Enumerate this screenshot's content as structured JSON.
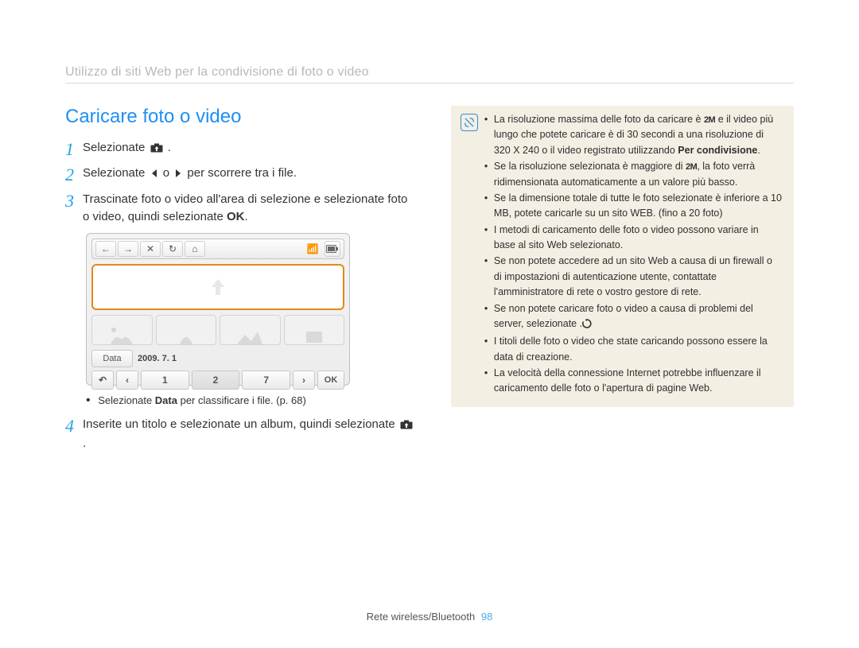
{
  "breadcrumb": "Utilizzo di siti Web per la condivisione di foto o video",
  "title": "Caricare foto o video",
  "steps": {
    "s1": {
      "num": "1",
      "text_a": "Selezionate ",
      "text_b": "."
    },
    "s2": {
      "num": "2",
      "text_a": "Selezionate ",
      "text_b": " o ",
      "text_c": " per scorrere tra i file."
    },
    "s3": {
      "num": "3",
      "text_a": "Trascinate foto o video all'area di selezione e selezionate foto o video, quindi selezionate ",
      "ok": "OK",
      "text_b": "."
    },
    "s4": {
      "num": "4",
      "text_a": "Inserite un titolo e selezionate un album, quindi selezionate ",
      "text_b": "."
    }
  },
  "note": {
    "pre": "Selezionate ",
    "bold": "Data",
    "post": " per classificare i file. (p. 68)"
  },
  "device": {
    "data_button": "Data",
    "date_text": "2009. 7. 1",
    "bottom_numbers": [
      "1",
      "2",
      "7"
    ],
    "ok_label": "OK",
    "border_color": "#e08a1a"
  },
  "info": {
    "items": [
      {
        "a": "La risoluzione massima delle foto da caricare è ",
        "res": "2M",
        "b": " e il video più lungo che potete caricare è di 30 secondi a una risoluzione di 320 X 240 o il video registrato utilizzando ",
        "bold": "Per condivisione",
        "c": "."
      },
      {
        "a": "Se la risoluzione selezionata è maggiore di ",
        "res": "2M",
        "b": ", la foto verrà ridimensionata automaticamente a un valore più basso."
      },
      {
        "a": "Se la dimensione totale di tutte le foto selezionate è inferiore a 10 MB, potete caricarle su un sito WEB. (fino a 20 foto)"
      },
      {
        "a": "I metodi di caricamento delle foto o video possono variare in base al sito Web selezionato."
      },
      {
        "a": "Se non potete accedere ad un sito Web a causa di un firewall o di impostazioni di autenticazione utente, contattate l'amministratore di rete o vostro gestore di rete."
      },
      {
        "a": "Se non potete caricare foto o video a causa di problemi del server, selezionate ",
        "refresh": true,
        "b": "."
      },
      {
        "a": "I titoli delle foto o video che state caricando possono essere la data di creazione."
      },
      {
        "a": "La velocità della connessione Internet potrebbe influenzare il caricamento delle foto o l'apertura di pagine Web."
      }
    ],
    "bg_color": "#f4efe3",
    "icon_color": "#2a8fd6"
  },
  "footer": {
    "label": "Rete wireless/Bluetooth",
    "page": "98"
  },
  "colors": {
    "title": "#1f8ff2",
    "step_num": "#22a0e6",
    "breadcrumb": "#b8b8b8"
  }
}
